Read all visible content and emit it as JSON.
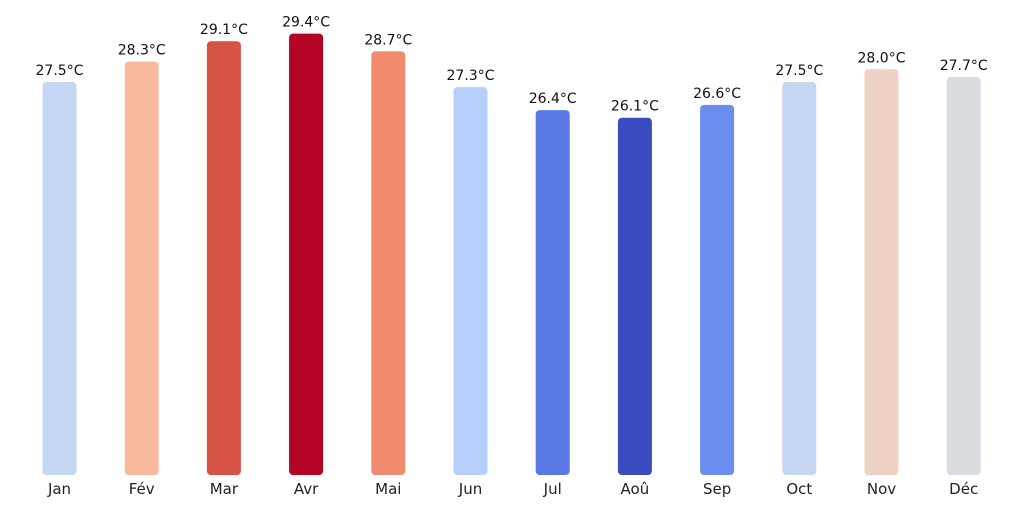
{
  "chart_data": {
    "type": "bar",
    "categories": [
      "Jan",
      "Fév",
      "Mar",
      "Avr",
      "Mai",
      "Jun",
      "Jul",
      "Aoû",
      "Sep",
      "Oct",
      "Nov",
      "Déc"
    ],
    "values": [
      27.5,
      28.3,
      29.1,
      29.4,
      28.7,
      27.3,
      26.4,
      26.1,
      26.6,
      27.5,
      28.0,
      27.7
    ],
    "value_labels": [
      "27.5°C",
      "28.3°C",
      "29.1°C",
      "29.4°C",
      "28.7°C",
      "27.3°C",
      "26.4°C",
      "26.1°C",
      "26.6°C",
      "27.5°C",
      "28.0°C",
      "27.7°C"
    ],
    "colors": [
      "#c5d6f2",
      "#f7b89c",
      "#d65244",
      "#b40426",
      "#f08b6e",
      "#b6cefa",
      "#5a78e4",
      "#3b4cc0",
      "#6b8df0",
      "#c5d6f2",
      "#edd1c2",
      "#d9dce1"
    ],
    "title": "",
    "xlabel": "",
    "ylabel": "",
    "grid": false,
    "legend": "none",
    "axes_visible": false
  }
}
